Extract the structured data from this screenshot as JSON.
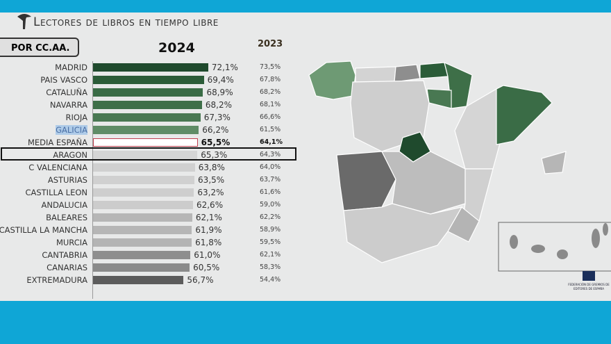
{
  "title": "Lectores de libros en tiempo libre",
  "tab_label": "POR CC.AA.",
  "logo_text": "FEDERACIÓN DE GREMIOS DE EDITORES DE ESPAÑA",
  "chart_data": {
    "type": "bar",
    "orientation": "horizontal",
    "title": "Lectores de libros en tiempo libre",
    "series": [
      {
        "name": "2024",
        "values": [
          72.1,
          69.4,
          68.9,
          68.2,
          67.3,
          66.2,
          65.5,
          65.3,
          63.8,
          63.5,
          63.2,
          62.6,
          62.1,
          61.9,
          61.8,
          61.0,
          60.5,
          56.7
        ],
        "labels": [
          "72,1%",
          "69,4%",
          "68,9%",
          "68,2%",
          "67,3%",
          "66,2%",
          "65,5%",
          "65,3%",
          "63,8%",
          "63,5%",
          "63,2%",
          "62,6%",
          "62,1%",
          "61,9%",
          "61,8%",
          "61,0%",
          "60,5%",
          "56,7%"
        ]
      },
      {
        "name": "2023",
        "values": [
          73.5,
          67.8,
          68.2,
          68.1,
          66.6,
          61.5,
          64.1,
          64.3,
          64.0,
          63.7,
          61.6,
          59.0,
          62.2,
          58.9,
          59.5,
          62.1,
          58.3,
          54.4
        ],
        "labels": [
          "73,5%",
          "67,8%",
          "68,2%",
          "68,1%",
          "66,6%",
          "61,5%",
          "64,1%",
          "64,3%",
          "64,0%",
          "63,7%",
          "61,6%",
          "59,0%",
          "62,2%",
          "58,9%",
          "59,5%",
          "62,1%",
          "58,3%",
          "54,4%"
        ]
      }
    ],
    "categories": [
      "MADRID",
      "PAIS VASCO",
      "CATALUÑA",
      "NAVARRA",
      "RIOJA",
      "GALICIA",
      "MEDIA ESPAÑA",
      "ARAGON",
      "C VALENCIANA",
      "ASTURIAS",
      "CASTILLA LEON",
      "ANDALUCIA",
      "BALEARES",
      "CASTILLA LA MANCHA",
      "MURCIA",
      "CANTABRIA",
      "CANARIAS",
      "EXTREMADURA"
    ],
    "bar_colors": [
      "#1f4a2d",
      "#2b5c38",
      "#3a6c46",
      "#3e6f48",
      "#497852",
      "#5f8c66",
      "#ffffff",
      "#d5d5d5",
      "#d0d0d0",
      "#d0d0d0",
      "#cecece",
      "#cccccc",
      "#b6b6b6",
      "#b6b6b6",
      "#b4b4b4",
      "#8e8e8e",
      "#8a8a8a",
      "#5c5c5c"
    ],
    "highlight": "MEDIA ESPAÑA",
    "unit": "%"
  }
}
